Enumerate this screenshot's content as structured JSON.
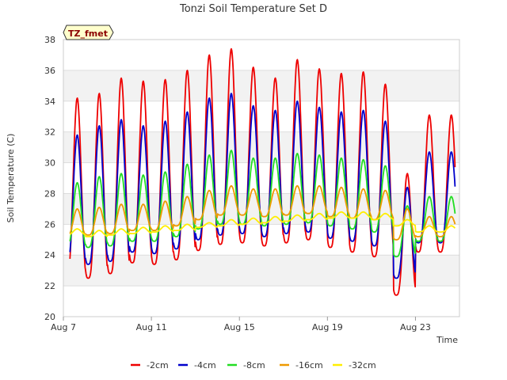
{
  "chart_data": {
    "type": "line",
    "title": "Tonzi Soil Temperature Set D",
    "xlabel": "Time",
    "ylabel": "Soil Temperature (C)",
    "site_badge": "TZ_fmet",
    "xlim_day": [
      7,
      25
    ],
    "ylim": [
      20,
      38
    ],
    "yticks": [
      20,
      22,
      24,
      26,
      28,
      30,
      32,
      34,
      36,
      38
    ],
    "xticks": [
      {
        "day": 7,
        "label": "Aug 7"
      },
      {
        "day": 11,
        "label": "Aug 11"
      },
      {
        "day": 15,
        "label": "Aug 15"
      },
      {
        "day": 19,
        "label": "Aug 19"
      },
      {
        "day": 23,
        "label": "Aug 23"
      }
    ],
    "grid": true,
    "legend_position": "bottom",
    "series": [
      {
        "name": "-2cm",
        "color": "#ee0000",
        "start_day": 7.3,
        "end_day": 24.8,
        "daily_max": [
          34.2,
          34.5,
          35.5,
          35.3,
          35.4,
          36.0,
          37.0,
          37.4,
          36.2,
          35.5,
          36.7,
          36.1,
          35.8,
          35.9,
          35.1,
          29.3,
          33.1
        ],
        "daily_min": [
          22.4,
          22.5,
          22.8,
          23.5,
          23.4,
          23.7,
          24.3,
          24.7,
          24.8,
          24.6,
          24.8,
          25.0,
          24.5,
          24.2,
          23.9,
          21.4,
          24.2
        ]
      },
      {
        "name": "-4cm",
        "color": "#0000cc",
        "start_day": 7.3,
        "end_day": 24.8,
        "daily_max": [
          31.8,
          32.4,
          32.8,
          32.4,
          32.7,
          33.3,
          34.2,
          34.5,
          33.7,
          33.4,
          34.0,
          33.6,
          33.3,
          33.4,
          32.7,
          28.4,
          30.7
        ],
        "daily_min": [
          23.2,
          23.4,
          23.6,
          24.2,
          24.1,
          24.4,
          25.0,
          25.3,
          25.4,
          25.2,
          25.4,
          25.5,
          25.1,
          24.9,
          24.6,
          22.5,
          24.8
        ]
      },
      {
        "name": "-8cm",
        "color": "#22dd22",
        "start_day": 7.3,
        "end_day": 24.8,
        "daily_max": [
          28.7,
          29.1,
          29.3,
          29.2,
          29.4,
          29.9,
          30.5,
          30.8,
          30.3,
          30.3,
          30.6,
          30.5,
          30.3,
          30.2,
          29.8,
          27.2,
          27.8
        ],
        "daily_min": [
          24.4,
          24.5,
          24.6,
          24.9,
          24.9,
          25.2,
          25.7,
          26.0,
          26.0,
          25.9,
          26.0,
          26.1,
          25.9,
          25.7,
          25.5,
          23.9,
          24.9
        ]
      },
      {
        "name": "-16cm",
        "color": "#ee9900",
        "start_day": 7.3,
        "end_day": 24.8,
        "daily_max": [
          27.0,
          27.1,
          27.3,
          27.3,
          27.5,
          27.8,
          28.2,
          28.5,
          28.3,
          28.3,
          28.5,
          28.5,
          28.4,
          28.3,
          28.2,
          27.0,
          26.5
        ],
        "daily_min": [
          25.2,
          25.3,
          25.4,
          25.6,
          25.6,
          25.9,
          26.3,
          26.6,
          26.6,
          26.5,
          26.6,
          26.7,
          26.5,
          26.4,
          26.3,
          25.0,
          25.2
        ]
      },
      {
        "name": "-32cm",
        "color": "#ffee00",
        "start_day": 7.3,
        "end_day": 24.8,
        "daily_max": [
          25.7,
          25.6,
          25.7,
          25.8,
          25.9,
          26.0,
          26.1,
          26.3,
          26.4,
          26.5,
          26.6,
          26.7,
          26.8,
          26.8,
          26.7,
          26.3,
          25.9
        ],
        "daily_min": [
          25.3,
          25.2,
          25.3,
          25.4,
          25.5,
          25.6,
          25.8,
          25.9,
          26.0,
          26.1,
          26.2,
          26.3,
          26.4,
          26.4,
          26.3,
          25.9,
          25.5
        ]
      }
    ]
  }
}
